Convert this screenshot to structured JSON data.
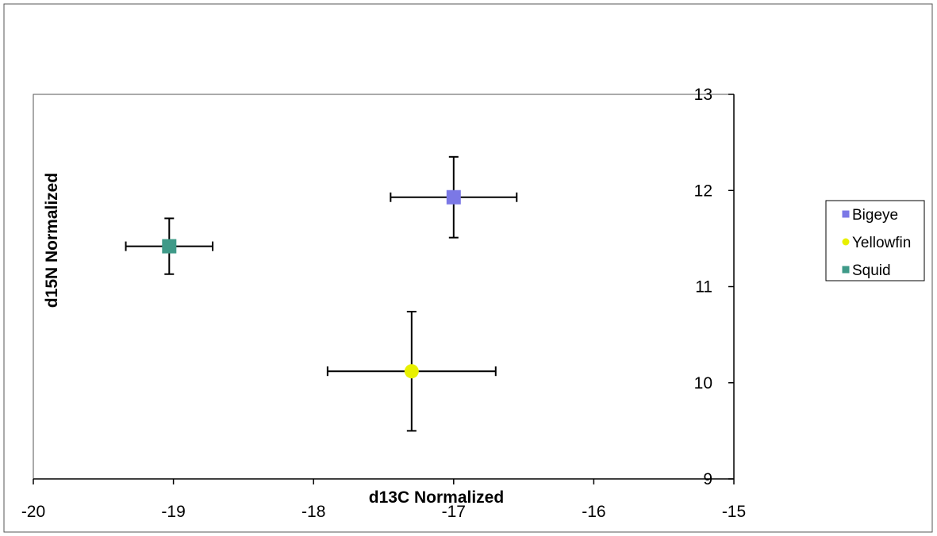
{
  "chart_data": {
    "type": "scatter",
    "title": "",
    "xlabel": "d13C Normalized",
    "ylabel": "d15N Normalized",
    "xlim": [
      -20,
      -15
    ],
    "ylim": [
      9,
      13
    ],
    "xticks": [
      "-20",
      "-19",
      "-18",
      "-17",
      "-16",
      "-15"
    ],
    "yticks": [
      "9",
      "10",
      "11",
      "12",
      "13"
    ],
    "grid": false,
    "legend_position": "right",
    "series": [
      {
        "name": "Bigeye",
        "color": "#7b78e6",
        "marker": "square",
        "points": [
          {
            "x": -17.0,
            "y": 11.93,
            "xerr": 0.45,
            "yerr": 0.42
          }
        ]
      },
      {
        "name": "Yellowfin",
        "color": "#e8f000",
        "marker": "circle",
        "points": [
          {
            "x": -17.3,
            "y": 10.12,
            "xerr": 0.6,
            "yerr": 0.62
          }
        ]
      },
      {
        "name": "Squid",
        "color": "#3f9a88",
        "marker": "square",
        "points": [
          {
            "x": -19.03,
            "y": 11.42,
            "xerr": 0.31,
            "yerr": 0.29
          }
        ]
      }
    ]
  }
}
